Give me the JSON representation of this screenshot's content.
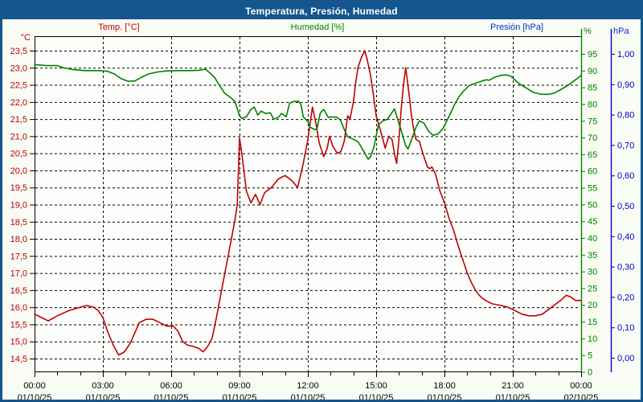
{
  "window": {
    "title": "Temperatura, Presión, Humedad"
  },
  "legend": {
    "temp": "Temp. [°C]",
    "humidity": "Humedad [%]",
    "pressure": "Presión [hPa]"
  },
  "axes": {
    "temp_unit": "°C",
    "humidity_unit": "%",
    "pressure_unit": "hPa",
    "temp_ticks": {
      "values": [
        23.5,
        23.0,
        22.5,
        22.0,
        21.5,
        21.0,
        20.5,
        20.0,
        19.5,
        19.0,
        18.5,
        18.0,
        17.5,
        17.0,
        16.5,
        16.0,
        15.5,
        15.0,
        14.5
      ],
      "labels": [
        "23,5",
        "23,0",
        "22,5",
        "22,0",
        "21,5",
        "21,0",
        "20,5",
        "20,0",
        "19,5",
        "19,0",
        "18,5",
        "18,0",
        "17,5",
        "17,0",
        "16,5",
        "16,0",
        "15,5",
        "15,0",
        "14,5"
      ]
    },
    "humidity_ticks": {
      "values": [
        95,
        90,
        85,
        80,
        75,
        70,
        65,
        60,
        55,
        50,
        45,
        40,
        35,
        30,
        25,
        20,
        15,
        10,
        5,
        0
      ],
      "labels": [
        "95",
        "90",
        "85",
        "80",
        "75",
        "70",
        "65",
        "60",
        "55",
        "50",
        "45",
        "40",
        "35",
        "30",
        "25",
        "20",
        "15",
        "10",
        "5",
        "0"
      ]
    },
    "pressure_ticks": {
      "values": [
        1.0,
        0.9,
        0.8,
        0.7,
        0.6,
        0.5,
        0.4,
        0.3,
        0.2,
        0.1,
        0.0
      ],
      "labels": [
        "1,00",
        "0,90",
        "0,80",
        "0,70",
        "0,60",
        "0,50",
        "0,40",
        "0,30",
        "0,20",
        "0,10",
        "0,00"
      ]
    },
    "x_ticks": [
      {
        "hour": 0,
        "time": "00:00",
        "date": "01/10/25"
      },
      {
        "hour": 3,
        "time": "03:00",
        "date": "01/10/25"
      },
      {
        "hour": 6,
        "time": "06:00",
        "date": "01/10/25"
      },
      {
        "hour": 9,
        "time": "09:00",
        "date": "01/10/25"
      },
      {
        "hour": 12,
        "time": "12:00",
        "date": "01/10/25"
      },
      {
        "hour": 15,
        "time": "15:00",
        "date": "01/10/25"
      },
      {
        "hour": 18,
        "time": "18:00",
        "date": "01/10/25"
      },
      {
        "hour": 21,
        "time": "21:00",
        "date": "01/10/25"
      },
      {
        "hour": 24,
        "time": "00:00",
        "date": "02/10/25"
      }
    ]
  },
  "colors": {
    "title_bar": "#15568F",
    "frame_border": "#15568F",
    "temp": "#C00000",
    "humidity": "#008000",
    "pressure": "#0000CC",
    "grid": "#000000",
    "x_labels": "#000000",
    "background": "#F9FCF4",
    "plot_background": "#FDFEFB"
  },
  "chart_data": {
    "type": "line",
    "title": "Temperatura, Presión, Humedad",
    "x_axis": {
      "start": "00:00 01/10/25",
      "end": "00:00 02/10/25",
      "major_tick_interval_hours": 3,
      "minor_tick_interval_hours": 1
    },
    "y_axes": {
      "temperature": {
        "unit": "°C",
        "side": "left",
        "min_label": 14.5,
        "max_label": 23.5,
        "step": 0.5
      },
      "humidity": {
        "unit": "%",
        "side": "right",
        "min_label": 0,
        "max_label": 95,
        "step": 5
      },
      "pressure": {
        "unit": "hPa",
        "side": "far-right",
        "min_label": 0.0,
        "max_label": 1.0,
        "step": 0.1
      }
    },
    "grid": "dashed",
    "series": [
      {
        "name": "Temp. [°C]",
        "axis": "temperature",
        "color": "#C00000",
        "points": [
          [
            0,
            15.8
          ],
          [
            0.3,
            15.7
          ],
          [
            0.6,
            15.6
          ],
          [
            1.0,
            15.75
          ],
          [
            1.5,
            15.9
          ],
          [
            2.0,
            16.0
          ],
          [
            2.3,
            16.05
          ],
          [
            2.6,
            16.0
          ],
          [
            2.8,
            15.9
          ],
          [
            3.0,
            15.7
          ],
          [
            3.2,
            15.3
          ],
          [
            3.45,
            14.9
          ],
          [
            3.7,
            14.6
          ],
          [
            3.95,
            14.7
          ],
          [
            4.2,
            14.95
          ],
          [
            4.4,
            15.25
          ],
          [
            4.6,
            15.55
          ],
          [
            4.9,
            15.65
          ],
          [
            5.2,
            15.65
          ],
          [
            5.5,
            15.55
          ],
          [
            5.8,
            15.45
          ],
          [
            6.1,
            15.45
          ],
          [
            6.3,
            15.3
          ],
          [
            6.5,
            15.0
          ],
          [
            6.7,
            14.9
          ],
          [
            7.0,
            14.85
          ],
          [
            7.2,
            14.8
          ],
          [
            7.4,
            14.7
          ],
          [
            7.6,
            14.85
          ],
          [
            7.8,
            15.1
          ],
          [
            8.0,
            15.75
          ],
          [
            8.2,
            16.45
          ],
          [
            8.4,
            17.15
          ],
          [
            8.6,
            17.85
          ],
          [
            8.8,
            18.55
          ],
          [
            8.9,
            19.0
          ],
          [
            9.0,
            20.95
          ],
          [
            9.1,
            20.5
          ],
          [
            9.3,
            19.4
          ],
          [
            9.5,
            19.05
          ],
          [
            9.7,
            19.3
          ],
          [
            9.9,
            19.0
          ],
          [
            10.1,
            19.35
          ],
          [
            10.4,
            19.5
          ],
          [
            10.7,
            19.75
          ],
          [
            11.0,
            19.85
          ],
          [
            11.3,
            19.7
          ],
          [
            11.55,
            19.5
          ],
          [
            11.8,
            20.2
          ],
          [
            12.0,
            20.9
          ],
          [
            12.2,
            21.85
          ],
          [
            12.35,
            21.4
          ],
          [
            12.5,
            20.8
          ],
          [
            12.7,
            20.4
          ],
          [
            12.85,
            20.65
          ],
          [
            12.95,
            21.0
          ],
          [
            13.1,
            20.7
          ],
          [
            13.3,
            20.5
          ],
          [
            13.45,
            20.55
          ],
          [
            13.6,
            20.85
          ],
          [
            13.75,
            21.6
          ],
          [
            13.85,
            21.5
          ],
          [
            14.0,
            22.0
          ],
          [
            14.1,
            22.55
          ],
          [
            14.2,
            23.0
          ],
          [
            14.35,
            23.3
          ],
          [
            14.5,
            23.5
          ],
          [
            14.6,
            23.25
          ],
          [
            14.75,
            22.8
          ],
          [
            14.9,
            22.1
          ],
          [
            15.0,
            21.6
          ],
          [
            15.15,
            21.25
          ],
          [
            15.3,
            20.9
          ],
          [
            15.4,
            20.65
          ],
          [
            15.55,
            21.0
          ],
          [
            15.7,
            20.9
          ],
          [
            15.8,
            20.5
          ],
          [
            15.9,
            20.2
          ],
          [
            16.0,
            20.9
          ],
          [
            16.1,
            21.8
          ],
          [
            16.2,
            22.5
          ],
          [
            16.3,
            23.0
          ],
          [
            16.45,
            22.2
          ],
          [
            16.55,
            21.6
          ],
          [
            16.65,
            21.2
          ],
          [
            16.75,
            20.9
          ],
          [
            16.9,
            20.85
          ],
          [
            17.0,
            20.6
          ],
          [
            17.1,
            20.4
          ],
          [
            17.25,
            20.1
          ],
          [
            17.35,
            20.05
          ],
          [
            17.45,
            20.1
          ],
          [
            17.6,
            19.9
          ],
          [
            17.8,
            19.4
          ],
          [
            18.0,
            19.05
          ],
          [
            18.2,
            18.6
          ],
          [
            18.4,
            18.25
          ],
          [
            18.6,
            17.8
          ],
          [
            18.8,
            17.4
          ],
          [
            19.0,
            17.0
          ],
          [
            19.2,
            16.7
          ],
          [
            19.4,
            16.45
          ],
          [
            19.6,
            16.3
          ],
          [
            19.8,
            16.2
          ],
          [
            20.1,
            16.1
          ],
          [
            20.5,
            16.05
          ],
          [
            20.8,
            16.0
          ],
          [
            21.1,
            15.9
          ],
          [
            21.4,
            15.8
          ],
          [
            21.7,
            15.75
          ],
          [
            22.0,
            15.75
          ],
          [
            22.3,
            15.8
          ],
          [
            22.6,
            15.95
          ],
          [
            22.9,
            16.1
          ],
          [
            23.1,
            16.2
          ],
          [
            23.35,
            16.35
          ],
          [
            23.55,
            16.3
          ],
          [
            23.75,
            16.2
          ],
          [
            24,
            16.2
          ]
        ]
      },
      {
        "name": "Humedad [%]",
        "axis": "humidity",
        "color": "#008000",
        "points": [
          [
            0,
            91.8
          ],
          [
            0.5,
            91.5
          ],
          [
            1.0,
            91.5
          ],
          [
            1.3,
            90.8
          ],
          [
            1.7,
            90.3
          ],
          [
            2.2,
            90.0
          ],
          [
            2.8,
            90.0
          ],
          [
            3.2,
            89.8
          ],
          [
            3.5,
            89.0
          ],
          [
            3.8,
            87.6
          ],
          [
            4.1,
            86.8
          ],
          [
            4.4,
            86.9
          ],
          [
            4.7,
            88.0
          ],
          [
            5.0,
            89.0
          ],
          [
            5.4,
            89.6
          ],
          [
            5.8,
            89.9
          ],
          [
            6.3,
            90.0
          ],
          [
            6.8,
            90.0
          ],
          [
            7.2,
            90.1
          ],
          [
            7.5,
            90.4
          ],
          [
            7.7,
            89.3
          ],
          [
            7.9,
            88.0
          ],
          [
            8.1,
            85.8
          ],
          [
            8.35,
            83.2
          ],
          [
            8.6,
            82.0
          ],
          [
            8.8,
            80.8
          ],
          [
            9.0,
            76.5
          ],
          [
            9.1,
            75.7
          ],
          [
            9.3,
            76.2
          ],
          [
            9.5,
            78.4
          ],
          [
            9.65,
            79.1
          ],
          [
            9.8,
            76.7
          ],
          [
            9.95,
            77.9
          ],
          [
            10.15,
            77.2
          ],
          [
            10.35,
            77.4
          ],
          [
            10.5,
            75.5
          ],
          [
            10.7,
            76.0
          ],
          [
            10.85,
            77.2
          ],
          [
            11.05,
            76.2
          ],
          [
            11.2,
            80.3
          ],
          [
            11.4,
            80.8
          ],
          [
            11.6,
            80.8
          ],
          [
            11.7,
            79.8
          ],
          [
            11.8,
            76.2
          ],
          [
            12.0,
            74.8
          ],
          [
            12.1,
            73.1
          ],
          [
            12.3,
            72.4
          ],
          [
            12.4,
            72.6
          ],
          [
            12.55,
            77.4
          ],
          [
            12.7,
            78.4
          ],
          [
            12.9,
            76.0
          ],
          [
            13.1,
            76.2
          ],
          [
            13.3,
            76.0
          ],
          [
            13.45,
            75.0
          ],
          [
            13.6,
            72.4
          ],
          [
            13.75,
            70.2
          ],
          [
            14.0,
            69.5
          ],
          [
            14.2,
            68.8
          ],
          [
            14.35,
            67.1
          ],
          [
            14.5,
            65.4
          ],
          [
            14.65,
            63.5
          ],
          [
            14.75,
            64.2
          ],
          [
            14.9,
            67.1
          ],
          [
            15.1,
            73.8
          ],
          [
            15.3,
            75.0
          ],
          [
            15.5,
            75.5
          ],
          [
            15.8,
            78.6
          ],
          [
            16.0,
            74.3
          ],
          [
            16.15,
            71.0
          ],
          [
            16.3,
            67.5
          ],
          [
            16.4,
            66.6
          ],
          [
            16.6,
            70.2
          ],
          [
            16.75,
            73.1
          ],
          [
            16.9,
            75.0
          ],
          [
            17.1,
            74.3
          ],
          [
            17.3,
            71.9
          ],
          [
            17.5,
            70.7
          ],
          [
            17.7,
            71.0
          ],
          [
            17.9,
            72.4
          ],
          [
            18.05,
            74.2
          ],
          [
            18.25,
            77.0
          ],
          [
            18.45,
            80.0
          ],
          [
            18.65,
            82.3
          ],
          [
            18.85,
            84.0
          ],
          [
            19.1,
            85.6
          ],
          [
            19.4,
            86.3
          ],
          [
            19.7,
            87.0
          ],
          [
            19.85,
            87.3
          ],
          [
            19.95,
            87.1
          ],
          [
            20.2,
            88.0
          ],
          [
            20.5,
            88.6
          ],
          [
            20.7,
            88.7
          ],
          [
            20.9,
            88.4
          ],
          [
            21.1,
            87.2
          ],
          [
            21.3,
            86.0
          ],
          [
            21.6,
            84.8
          ],
          [
            21.9,
            83.5
          ],
          [
            22.2,
            83.0
          ],
          [
            22.5,
            82.9
          ],
          [
            22.8,
            83.2
          ],
          [
            23.1,
            84.3
          ],
          [
            23.4,
            85.5
          ],
          [
            23.7,
            87.0
          ],
          [
            23.9,
            88.0
          ],
          [
            24,
            88.6
          ]
        ]
      },
      {
        "name": "Presión [hPa]",
        "axis": "pressure",
        "color": "#0000CC",
        "points": []
      }
    ]
  }
}
